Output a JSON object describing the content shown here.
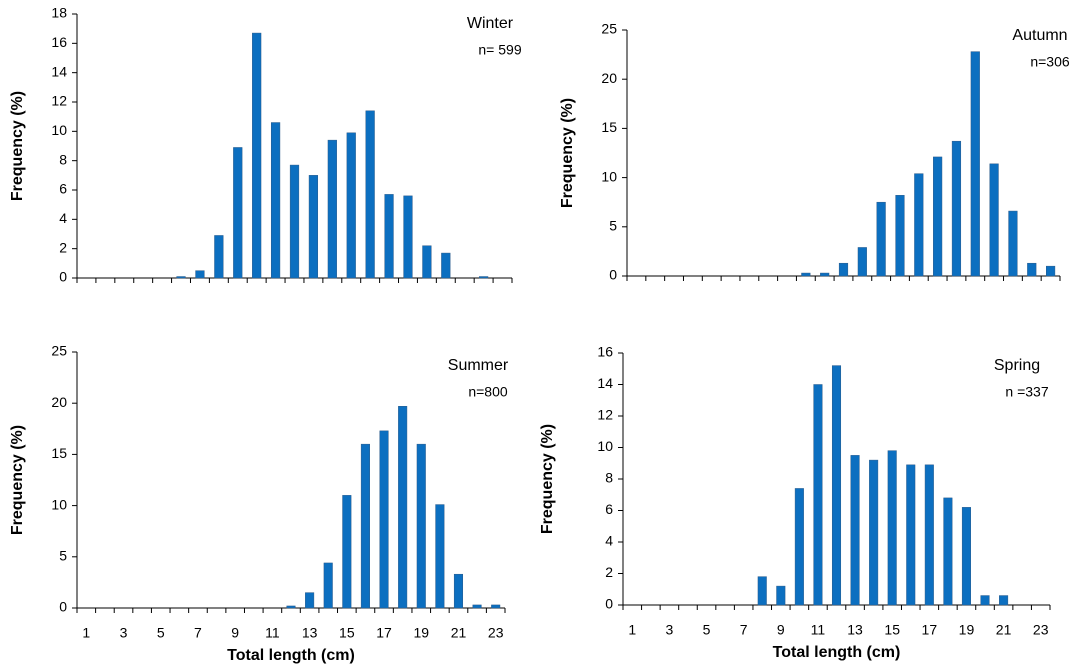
{
  "chart_data": [
    {
      "type": "bar",
      "annotations": [
        "Winter",
        "n= 599"
      ],
      "ylabel": "Frequency (%)",
      "color": "#0c6fc0",
      "categories": [
        null,
        null,
        null,
        null,
        null,
        null,
        null,
        null,
        null,
        null,
        null,
        null,
        null,
        null,
        null,
        null,
        null,
        null,
        null,
        null,
        null,
        null,
        null
      ],
      "values": [
        0,
        0,
        0,
        0,
        0,
        0.1,
        0.5,
        2.9,
        8.9,
        16.7,
        10.6,
        7.7,
        7.0,
        9.4,
        9.9,
        11.4,
        5.7,
        5.6,
        2.2,
        1.7,
        0,
        0.1,
        0
      ],
      "ylim": [
        0,
        18
      ],
      "yticks": [
        0,
        2,
        4,
        6,
        8,
        10,
        12,
        14,
        16,
        18
      ]
    },
    {
      "type": "bar",
      "annotations": [
        "Autumn",
        "n=306"
      ],
      "ylabel": "Frequency (%)",
      "color": "#0c6fc0",
      "categories": [
        null,
        null,
        null,
        null,
        null,
        null,
        null,
        null,
        null,
        null,
        null,
        null,
        null,
        null,
        null,
        null,
        null,
        null,
        null,
        null,
        null,
        null,
        null
      ],
      "values": [
        0,
        0,
        0,
        0,
        0,
        0,
        0,
        0,
        0,
        0.3,
        0.3,
        1.3,
        2.9,
        7.5,
        8.2,
        10.4,
        12.1,
        13.7,
        22.8,
        11.4,
        6.6,
        1.3,
        1.0
      ],
      "ylim": [
        0,
        25
      ],
      "yticks": [
        0,
        5,
        10,
        15,
        20,
        25
      ]
    },
    {
      "type": "bar",
      "annotations": [
        "Summer",
        "n=800"
      ],
      "ylabel": "Frequency (%)",
      "xlabel": "Total length (cm)",
      "color": "#0c6fc0",
      "categories": [
        1,
        null,
        3,
        null,
        5,
        null,
        7,
        null,
        9,
        null,
        11,
        null,
        13,
        null,
        15,
        null,
        17,
        null,
        19,
        null,
        21,
        null,
        23
      ],
      "values": [
        0,
        0,
        0,
        0,
        0,
        0,
        0,
        0,
        0,
        0,
        0,
        0.2,
        1.5,
        4.4,
        11.0,
        16.0,
        17.3,
        19.7,
        16.0,
        10.1,
        3.3,
        0.3,
        0.3
      ],
      "ylim": [
        0,
        25
      ],
      "yticks": [
        0,
        5,
        10,
        15,
        20,
        25
      ]
    },
    {
      "type": "bar",
      "annotations": [
        "Spring",
        "n =337"
      ],
      "ylabel": "Frequency (%)",
      "xlabel": "Total length (cm)",
      "color": "#0c6fc0",
      "categories": [
        1,
        null,
        3,
        null,
        5,
        null,
        7,
        null,
        9,
        null,
        11,
        null,
        13,
        null,
        15,
        null,
        17,
        null,
        19,
        null,
        21,
        null,
        23
      ],
      "values": [
        0,
        0,
        0,
        0,
        0,
        0,
        0,
        1.8,
        1.2,
        7.4,
        14.0,
        15.2,
        9.5,
        9.2,
        9.8,
        8.9,
        8.9,
        6.8,
        6.2,
        0.6,
        0.6,
        0,
        0
      ],
      "ylim": [
        0,
        16
      ],
      "yticks": [
        0,
        2,
        4,
        6,
        8,
        10,
        12,
        14,
        16
      ]
    }
  ]
}
